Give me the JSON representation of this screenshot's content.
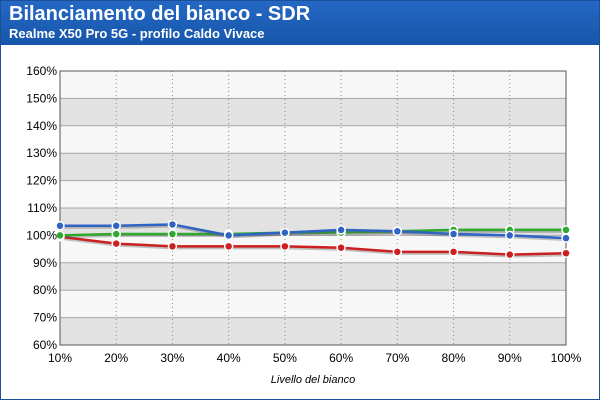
{
  "header": {
    "title": "Bilanciamento del bianco - SDR",
    "subtitle": "Realme X50 Pro 5G - profilo Caldo Vivace"
  },
  "chart_data": {
    "type": "line",
    "title": "Bilanciamento del bianco - SDR",
    "subtitle": "Realme X50 Pro 5G - profilo Caldo Vivace",
    "xlabel": "Livello del bianco",
    "ylabel": "",
    "categories": [
      "10%",
      "20%",
      "30%",
      "40%",
      "50%",
      "60%",
      "70%",
      "80%",
      "90%",
      "100%"
    ],
    "yticks": [
      "60%",
      "70%",
      "80%",
      "90%",
      "100%",
      "110%",
      "120%",
      "130%",
      "140%",
      "150%",
      "160%"
    ],
    "ylim": [
      60,
      160
    ],
    "grid": true,
    "series": [
      {
        "color": "#cc1f1f",
        "values": [
          99.5,
          97,
          96,
          96,
          96,
          95.5,
          94,
          94,
          93,
          93.5
        ]
      },
      {
        "color": "#2ea82e",
        "values": [
          100,
          100.5,
          100.5,
          100.5,
          101,
          101,
          101.5,
          102,
          102,
          102
        ]
      },
      {
        "color": "#2f63c4",
        "values": [
          103.5,
          103.5,
          104,
          100,
          101,
          102,
          101.5,
          100.5,
          100,
          99
        ]
      }
    ]
  }
}
